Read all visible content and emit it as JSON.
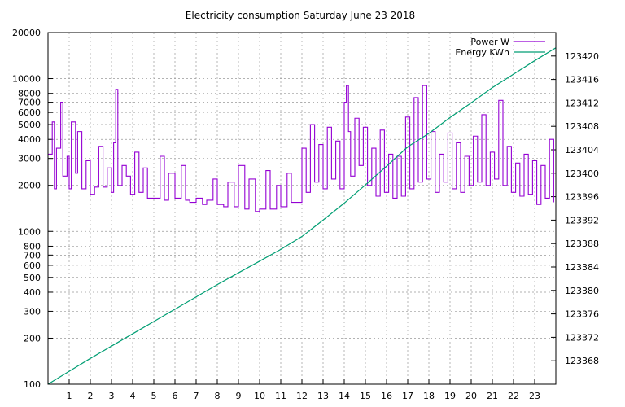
{
  "chart_data": {
    "type": "line",
    "title": "Electricity consumption Saturday June 23 2018",
    "xlabel": "",
    "ylabel": "",
    "y2label": "",
    "xlim": [
      0,
      24
    ],
    "ylim": [
      100,
      20000
    ],
    "y2lim": [
      123364,
      123424
    ],
    "yscale": "log",
    "y2scale": "linear",
    "grid": true,
    "legend_position": "top-right",
    "x_ticks": [
      "1",
      "2",
      "3",
      "4",
      "5",
      "6",
      "7",
      "8",
      "9",
      "10",
      "11",
      "12",
      "13",
      "14",
      "15",
      "16",
      "17",
      "18",
      "19",
      "20",
      "21",
      "22",
      "23"
    ],
    "y_ticks": [
      {
        "value": 100,
        "label": "100"
      },
      {
        "value": 200,
        "label": "200"
      },
      {
        "value": 300,
        "label": "300"
      },
      {
        "value": 400,
        "label": "400"
      },
      {
        "value": 500,
        "label": "500"
      },
      {
        "value": 600,
        "label": "600"
      },
      {
        "value": 700,
        "label": "700"
      },
      {
        "value": 800,
        "label": "800"
      },
      {
        "value": 1000,
        "label": "1000"
      },
      {
        "value": 2000,
        "label": "2000"
      },
      {
        "value": 3000,
        "label": "3000"
      },
      {
        "value": 4000,
        "label": "4000"
      },
      {
        "value": 5000,
        "label": "5000"
      },
      {
        "value": 6000,
        "label": "6000"
      },
      {
        "value": 7000,
        "label": "7000"
      },
      {
        "value": 8000,
        "label": "8000"
      },
      {
        "value": 10000,
        "label": "10000"
      },
      {
        "value": 20000,
        "label": "20000"
      }
    ],
    "y2_ticks": [
      123368,
      123372,
      123376,
      123380,
      123384,
      123388,
      123392,
      123396,
      123400,
      123404,
      123408,
      123412,
      123416,
      123420
    ],
    "series": [
      {
        "name": "Power W",
        "axis": "left",
        "color": "#9400d3",
        "x": [
          0.0,
          0.2,
          0.3,
          0.4,
          0.6,
          0.7,
          0.9,
          1.0,
          1.1,
          1.3,
          1.4,
          1.6,
          1.8,
          2.0,
          2.2,
          2.4,
          2.6,
          2.8,
          3.0,
          3.1,
          3.2,
          3.3,
          3.5,
          3.7,
          3.9,
          4.1,
          4.3,
          4.5,
          4.7,
          5.0,
          5.3,
          5.5,
          5.7,
          6.0,
          6.3,
          6.5,
          6.7,
          7.0,
          7.3,
          7.5,
          7.8,
          8.0,
          8.3,
          8.5,
          8.8,
          9.0,
          9.3,
          9.5,
          9.8,
          10.0,
          10.3,
          10.5,
          10.8,
          11.0,
          11.3,
          11.5,
          11.8,
          12.0,
          12.2,
          12.4,
          12.6,
          12.8,
          13.0,
          13.2,
          13.4,
          13.6,
          13.8,
          14.0,
          14.1,
          14.2,
          14.3,
          14.5,
          14.7,
          14.9,
          15.1,
          15.3,
          15.5,
          15.7,
          15.9,
          16.1,
          16.3,
          16.5,
          16.7,
          16.9,
          17.1,
          17.3,
          17.5,
          17.7,
          17.9,
          18.1,
          18.3,
          18.5,
          18.7,
          18.9,
          19.1,
          19.3,
          19.5,
          19.7,
          19.9,
          20.1,
          20.3,
          20.5,
          20.7,
          20.9,
          21.1,
          21.3,
          21.5,
          21.7,
          21.9,
          22.1,
          22.3,
          22.5,
          22.7,
          22.9,
          23.1,
          23.3,
          23.5,
          23.7,
          23.9
        ],
        "values": [
          3200,
          5200,
          1900,
          3500,
          7000,
          2300,
          3100,
          1900,
          5200,
          2400,
          4500,
          1900,
          2900,
          1750,
          1950,
          3600,
          1950,
          2600,
          1800,
          3800,
          8500,
          2000,
          2700,
          2300,
          1750,
          3300,
          1800,
          2600,
          1650,
          1650,
          3100,
          1600,
          2400,
          1650,
          2700,
          1600,
          1550,
          1650,
          1500,
          1600,
          2200,
          1500,
          1450,
          2100,
          1450,
          2700,
          1400,
          2200,
          1350,
          1400,
          2500,
          1400,
          2000,
          1450,
          2400,
          1550,
          1550,
          3500,
          1800,
          5000,
          2100,
          3700,
          1900,
          4800,
          2200,
          3900,
          1900,
          7000,
          9000,
          4500,
          2300,
          5500,
          2700,
          4800,
          2000,
          3500,
          1700,
          4600,
          1800,
          3200,
          1650,
          3100,
          1700,
          5600,
          1900,
          7500,
          2100,
          9000,
          2200,
          4500,
          1800,
          3200,
          2100,
          4400,
          1900,
          3800,
          1800,
          3100,
          2000,
          4200,
          2100,
          5800,
          2000,
          3300,
          2200,
          7200,
          2000,
          3600,
          1800,
          2800,
          1700,
          3200,
          1750,
          2900,
          1500,
          2700,
          1650,
          4000,
          1550
        ]
      },
      {
        "name": "Energy KWh",
        "axis": "right",
        "color": "#009e73",
        "x": [
          0,
          1,
          2,
          3,
          4,
          5,
          6,
          7,
          8,
          9,
          10,
          11,
          12,
          13,
          14,
          15,
          16,
          17,
          18,
          19,
          20,
          21,
          22,
          23,
          24
        ],
        "values": [
          123364.0,
          123366.2,
          123368.4,
          123370.5,
          123372.6,
          123374.7,
          123376.8,
          123378.9,
          123381.0,
          123383.0,
          123385.0,
          123387.0,
          123389.2,
          123392.0,
          123394.9,
          123398.0,
          123401.2,
          123404.5,
          123406.8,
          123409.5,
          123412.0,
          123414.6,
          123416.9,
          123419.2,
          123421.4
        ]
      }
    ]
  }
}
